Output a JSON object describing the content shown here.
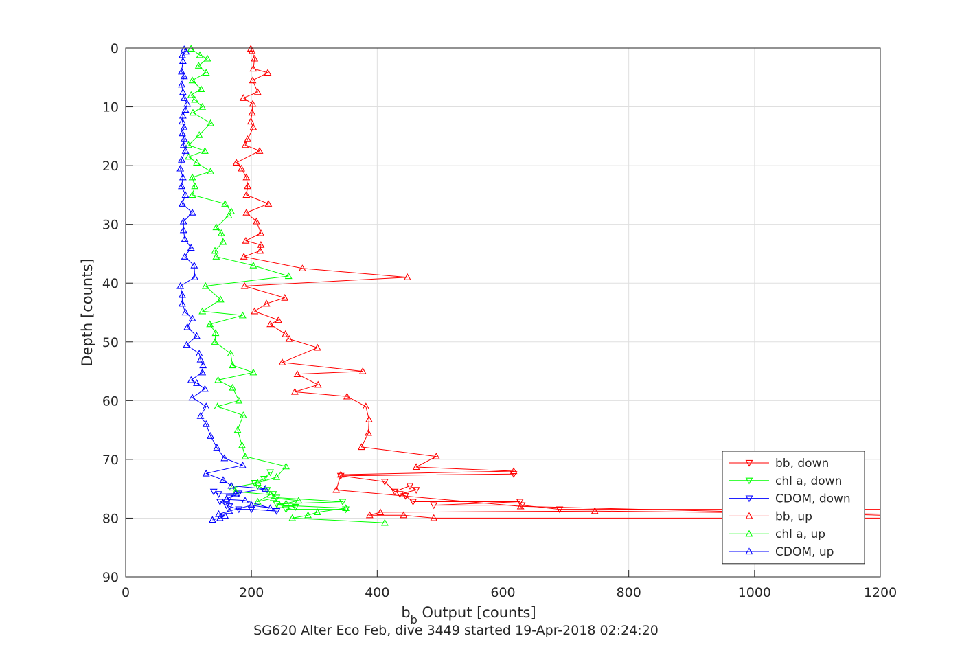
{
  "chart_data": {
    "type": "line",
    "xlabel_main": "b",
    "xlabel_sub": "b",
    "xlabel_rest": " Output [counts]",
    "ylabel": "Depth [counts]",
    "caption": "SG620 Alter Eco Feb, dive 3449 started 19-Apr-2018 02:24:20",
    "xlim": [
      0,
      1200
    ],
    "ylim": [
      0,
      90
    ],
    "y_reversed": true,
    "grid": true,
    "legend_position": "bottom-right",
    "x_ticks": [
      "0",
      "200",
      "400",
      "600",
      "800",
      "1000",
      "1200"
    ],
    "y_ticks": [
      "0",
      "10",
      "20",
      "30",
      "40",
      "50",
      "60",
      "70",
      "80",
      "90"
    ],
    "series": [
      {
        "name": "bb, down",
        "color": "#ff0000",
        "marker": "down",
        "points": [
          [
            1200,
            78.5
          ],
          [
            690,
            78.5
          ],
          [
            630,
            77.8
          ],
          [
            490,
            77.8
          ],
          [
            627,
            77.2
          ],
          [
            457,
            77.2
          ],
          [
            445,
            76.2
          ],
          [
            436,
            75.9
          ],
          [
            462,
            75.2
          ],
          [
            452,
            74.5
          ],
          [
            428,
            75.5
          ],
          [
            412,
            73.8
          ],
          [
            342,
            72.8
          ],
          [
            617,
            72.5
          ]
        ]
      },
      {
        "name": "chl a, down",
        "color": "#00ff00",
        "marker": "down",
        "points": [
          [
            350,
            78.5
          ],
          [
            255,
            78.5
          ],
          [
            270,
            78.1
          ],
          [
            240,
            77.6
          ],
          [
            345,
            77.2
          ],
          [
            240,
            76.5
          ],
          [
            235,
            75.9
          ],
          [
            225,
            75.2
          ],
          [
            210,
            74.5
          ],
          [
            205,
            74.0
          ],
          [
            220,
            73.3
          ],
          [
            230,
            72.2
          ]
        ]
      },
      {
        "name": "CDOM, down",
        "color": "#0000ff",
        "marker": "down",
        "points": [
          [
            240,
            78.8
          ],
          [
            200,
            78.5
          ],
          [
            180,
            78.5
          ],
          [
            165,
            78.0
          ],
          [
            160,
            77.8
          ],
          [
            150,
            77.2
          ],
          [
            165,
            76.5
          ],
          [
            180,
            75.8
          ],
          [
            148,
            75.9
          ],
          [
            140,
            75.5
          ]
        ]
      },
      {
        "name": "bb, up",
        "color": "#ff0000",
        "marker": "up",
        "points": [
          [
            1200,
            80.0
          ],
          [
            490,
            80.0
          ],
          [
            442,
            79.5
          ],
          [
            388,
            79.5
          ],
          [
            405,
            79.0
          ],
          [
            746,
            78.8
          ],
          [
            1200,
            79.3
          ],
          [
            1200,
            79.5
          ],
          [
            628,
            78.0
          ],
          [
            335,
            75.2
          ],
          [
            342,
            72.6
          ],
          [
            617,
            72.0
          ],
          [
            462,
            71.3
          ],
          [
            494,
            69.5
          ],
          [
            375,
            67.9
          ],
          [
            386,
            65.5
          ],
          [
            387,
            63.2
          ],
          [
            382,
            61.0
          ],
          [
            352,
            59.3
          ],
          [
            269,
            58.5
          ],
          [
            306,
            57.3
          ],
          [
            273,
            55.5
          ],
          [
            377,
            55.0
          ],
          [
            249,
            53.5
          ],
          [
            305,
            51.0
          ],
          [
            260,
            49.5
          ],
          [
            254,
            48.7
          ],
          [
            230,
            47.0
          ],
          [
            243,
            46.3
          ],
          [
            205,
            44.8
          ],
          [
            224,
            43.5
          ],
          [
            253,
            42.5
          ],
          [
            189,
            40.5
          ],
          [
            448,
            39.0
          ],
          [
            281,
            37.5
          ],
          [
            188,
            35.5
          ],
          [
            214,
            34.5
          ],
          [
            215,
            33.5
          ],
          [
            191,
            32.8
          ],
          [
            215,
            31.5
          ],
          [
            208,
            29.5
          ],
          [
            192,
            28.0
          ],
          [
            227,
            26.5
          ],
          [
            192,
            25.0
          ],
          [
            194,
            23.5
          ],
          [
            192,
            22.0
          ],
          [
            184,
            20.5
          ],
          [
            176,
            19.5
          ],
          [
            213,
            17.5
          ],
          [
            190,
            16.5
          ],
          [
            194,
            15.5
          ],
          [
            203,
            13.5
          ],
          [
            199,
            12.5
          ],
          [
            201,
            11.0
          ],
          [
            202,
            9.5
          ],
          [
            187,
            8.5
          ],
          [
            210,
            7.5
          ],
          [
            202,
            5.5
          ],
          [
            226,
            4.2
          ],
          [
            203,
            3.5
          ],
          [
            205,
            1.8
          ],
          [
            201,
            0.5
          ],
          [
            199,
            0.1
          ]
        ]
      },
      {
        "name": "chl a, up",
        "color": "#00ff00",
        "marker": "up",
        "points": [
          [
            412,
            80.8
          ],
          [
            265,
            80.0
          ],
          [
            290,
            79.5
          ],
          [
            305,
            79.0
          ],
          [
            350,
            78.3
          ],
          [
            245,
            77.8
          ],
          [
            255,
            77.5
          ],
          [
            275,
            77.0
          ],
          [
            235,
            76.6
          ],
          [
            210,
            77.2
          ],
          [
            230,
            76.0
          ],
          [
            175,
            75.5
          ],
          [
            170,
            74.8
          ],
          [
            210,
            74.0
          ],
          [
            240,
            73.0
          ],
          [
            255,
            71.2
          ],
          [
            190,
            69.5
          ],
          [
            185,
            67.6
          ],
          [
            178,
            65.0
          ],
          [
            187,
            62.5
          ],
          [
            146,
            61.0
          ],
          [
            180,
            60.0
          ],
          [
            170,
            57.8
          ],
          [
            147,
            56.5
          ],
          [
            203,
            55.2
          ],
          [
            170,
            54.0
          ],
          [
            167,
            52.0
          ],
          [
            142,
            50.0
          ],
          [
            143,
            48.5
          ],
          [
            134,
            47.0
          ],
          [
            186,
            45.5
          ],
          [
            122,
            44.8
          ],
          [
            151,
            42.8
          ],
          [
            127,
            40.5
          ],
          [
            259,
            38.8
          ],
          [
            203,
            37.0
          ],
          [
            144,
            35.5
          ],
          [
            142,
            34.5
          ],
          [
            155,
            33.0
          ],
          [
            152,
            31.5
          ],
          [
            144,
            30.5
          ],
          [
            164,
            28.5
          ],
          [
            168,
            27.8
          ],
          [
            158,
            26.5
          ],
          [
            106,
            25.0
          ],
          [
            110,
            23.5
          ],
          [
            106,
            22.0
          ],
          [
            135,
            21.0
          ],
          [
            113,
            19.5
          ],
          [
            100,
            18.5
          ],
          [
            126,
            17.5
          ],
          [
            100,
            16.5
          ],
          [
            117,
            14.8
          ],
          [
            135,
            12.8
          ],
          [
            107,
            11.0
          ],
          [
            122,
            10.0
          ],
          [
            110,
            8.8
          ],
          [
            104,
            8.0
          ],
          [
            120,
            7.0
          ],
          [
            106,
            5.5
          ],
          [
            128,
            4.2
          ],
          [
            116,
            3.0
          ],
          [
            130,
            1.8
          ],
          [
            118,
            1.2
          ],
          [
            104,
            0.1
          ]
        ]
      },
      {
        "name": "CDOM, up",
        "color": "#0000ff",
        "marker": "up",
        "points": [
          [
            138,
            80.3
          ],
          [
            150,
            80.0
          ],
          [
            158,
            79.6
          ],
          [
            148,
            79.3
          ],
          [
            165,
            78.8
          ],
          [
            200,
            77.8
          ],
          [
            230,
            78.3
          ],
          [
            190,
            77.0
          ],
          [
            160,
            76.8
          ],
          [
            175,
            75.8
          ],
          [
            222,
            75.0
          ],
          [
            168,
            74.5
          ],
          [
            155,
            73.5
          ],
          [
            128,
            72.4
          ],
          [
            186,
            71.0
          ],
          [
            157,
            69.8
          ],
          [
            145,
            68.0
          ],
          [
            135,
            66.0
          ],
          [
            128,
            64.0
          ],
          [
            119,
            62.6
          ],
          [
            128,
            61.0
          ],
          [
            106,
            59.5
          ],
          [
            126,
            58.0
          ],
          [
            113,
            57.0
          ],
          [
            104,
            56.5
          ],
          [
            122,
            55.2
          ],
          [
            123,
            54.0
          ],
          [
            119,
            53.0
          ],
          [
            117,
            52.0
          ],
          [
            97,
            50.5
          ],
          [
            113,
            49.0
          ],
          [
            98,
            47.5
          ],
          [
            106,
            46.0
          ],
          [
            95,
            45.0
          ],
          [
            90,
            43.5
          ],
          [
            90,
            42.0
          ],
          [
            87,
            40.5
          ],
          [
            110,
            39.0
          ],
          [
            109,
            37.0
          ],
          [
            94,
            35.5
          ],
          [
            104,
            34.0
          ],
          [
            94,
            32.5
          ],
          [
            92,
            31.0
          ],
          [
            92,
            29.5
          ],
          [
            106,
            28.0
          ],
          [
            90,
            26.5
          ],
          [
            95,
            25.0
          ],
          [
            89,
            23.5
          ],
          [
            91,
            22.0
          ],
          [
            87,
            20.5
          ],
          [
            89,
            19.0
          ],
          [
            95,
            17.5
          ],
          [
            92,
            16.5
          ],
          [
            93,
            15.5
          ],
          [
            90,
            14.5
          ],
          [
            93,
            13.5
          ],
          [
            90,
            12.5
          ],
          [
            91,
            11.5
          ],
          [
            95,
            10.5
          ],
          [
            98,
            9.5
          ],
          [
            93,
            8.5
          ],
          [
            91,
            7.5
          ],
          [
            89,
            6.2
          ],
          [
            93,
            4.8
          ],
          [
            89,
            4.0
          ],
          [
            91,
            2.2
          ],
          [
            90,
            1.2
          ],
          [
            96,
            0.6
          ],
          [
            93,
            0.2
          ]
        ]
      }
    ]
  }
}
